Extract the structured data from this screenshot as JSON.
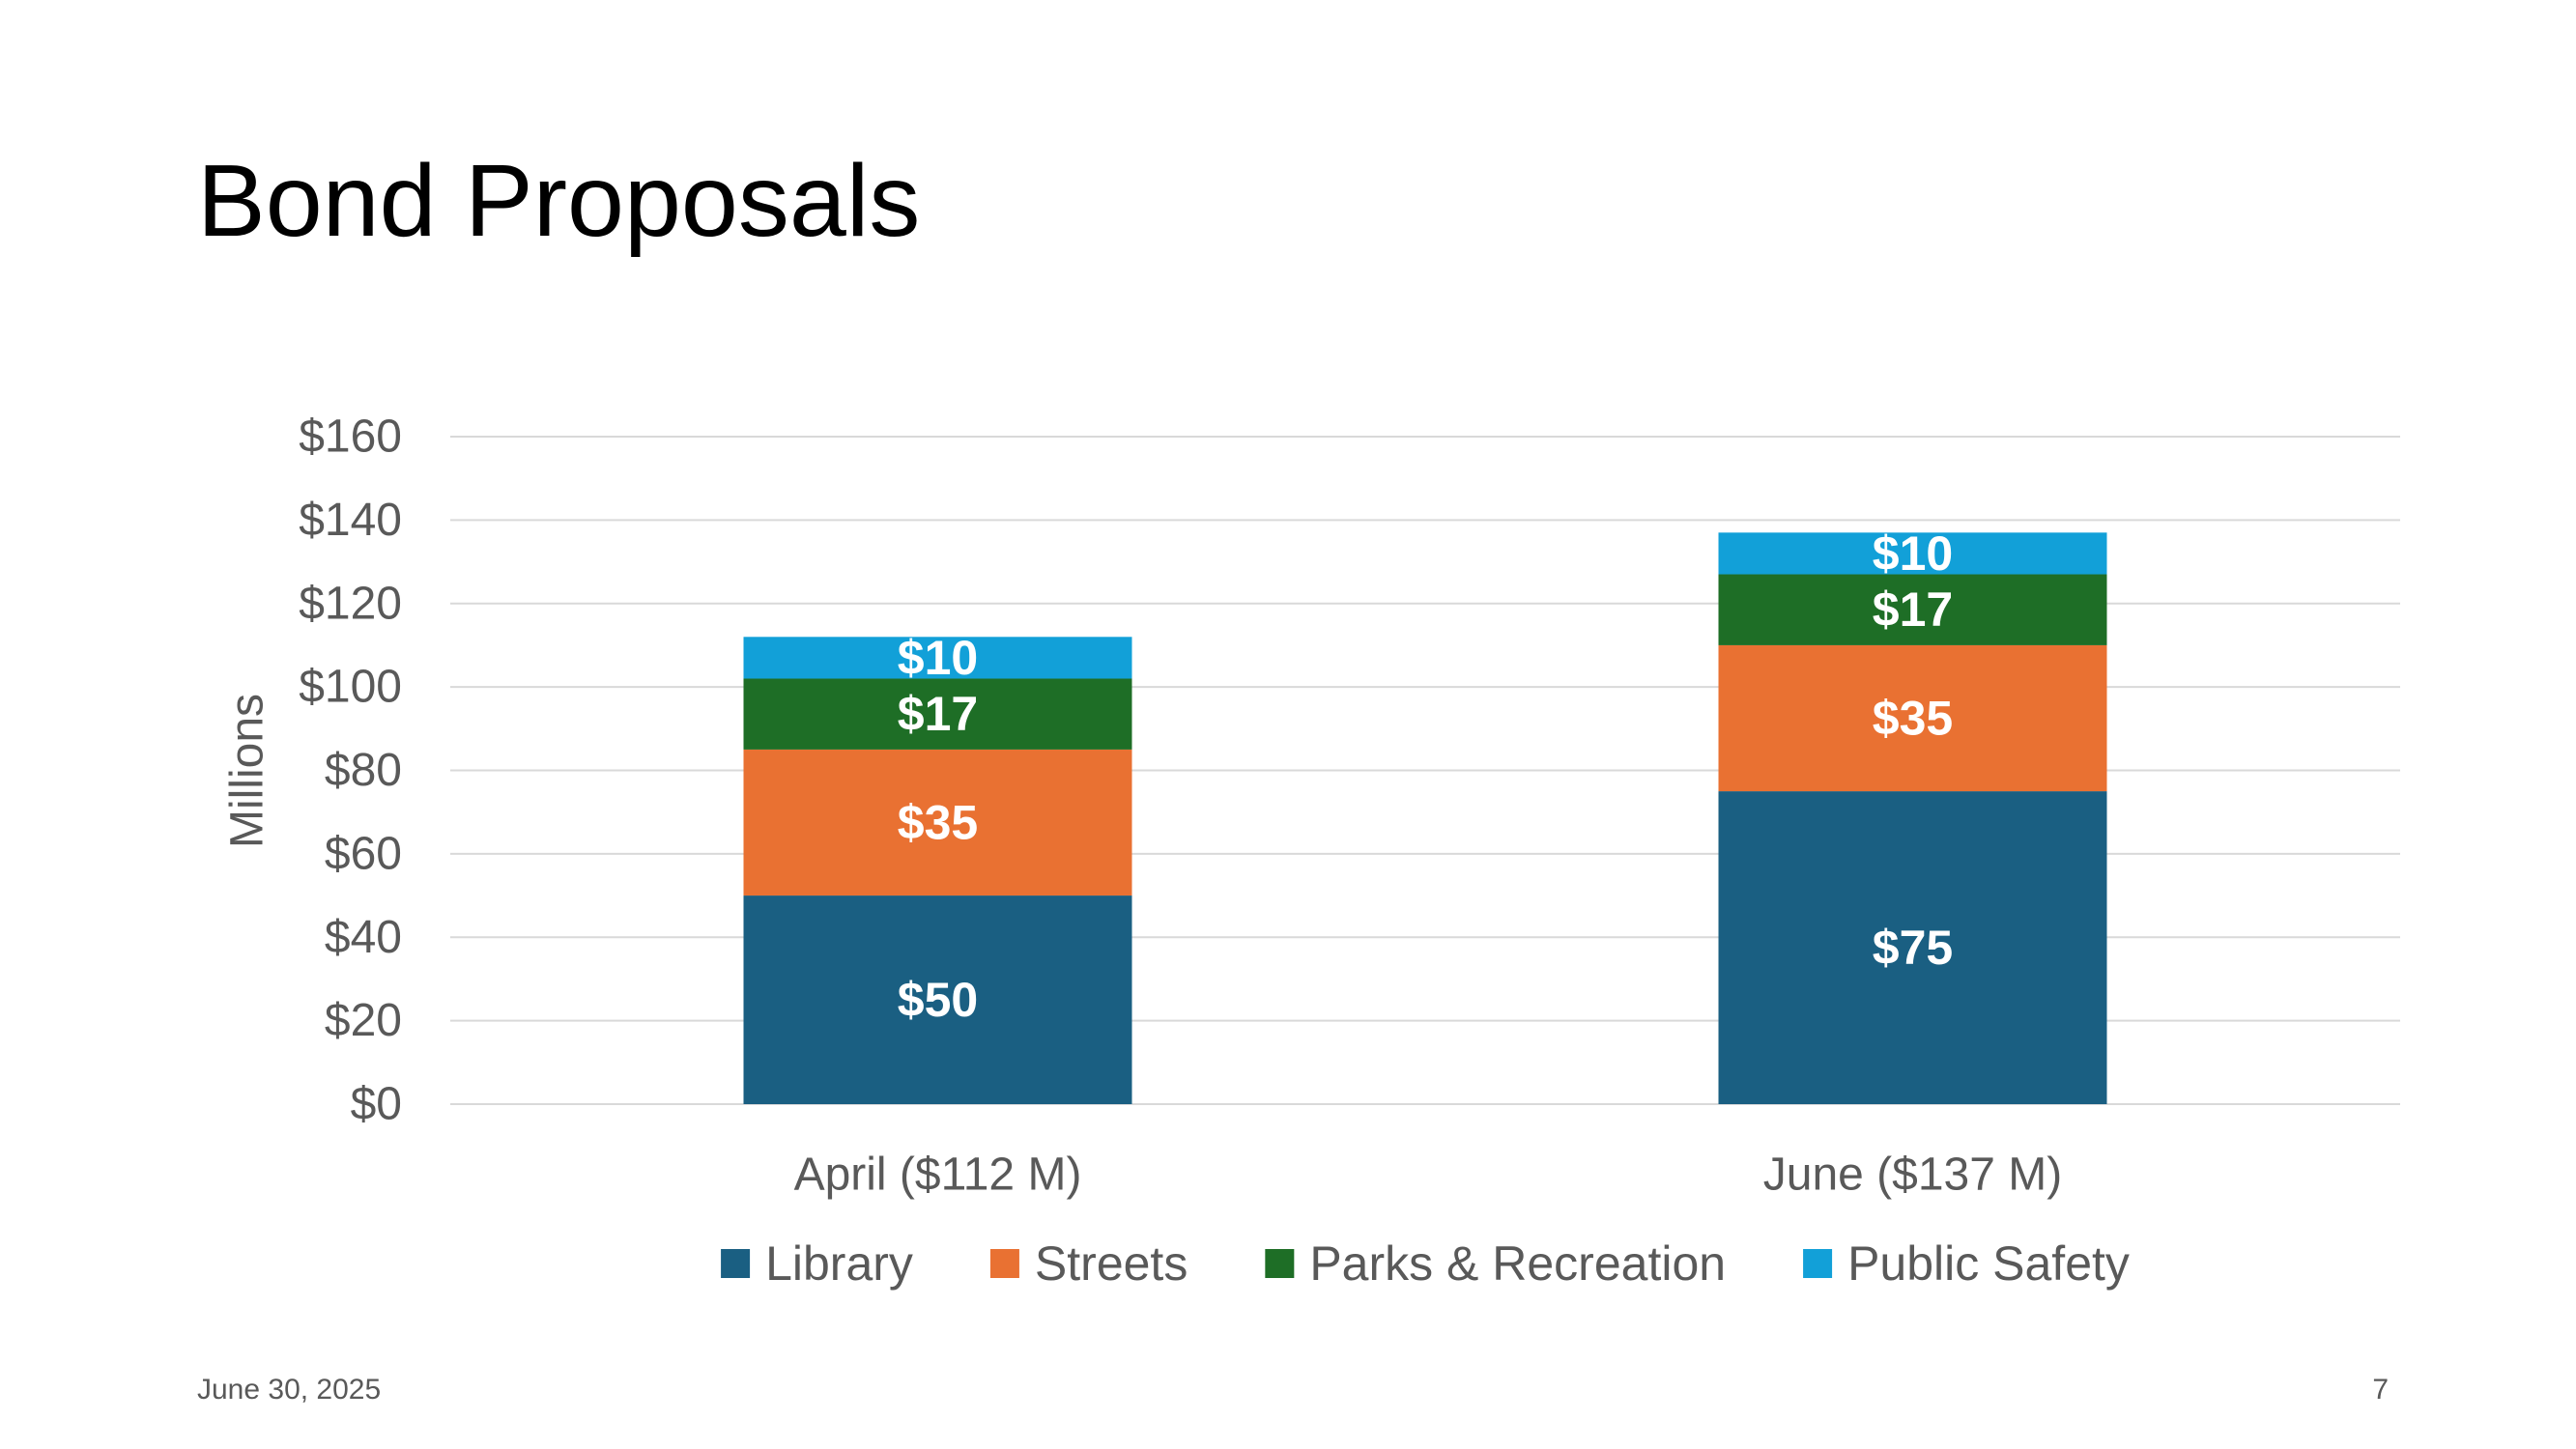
{
  "slide": {
    "title": "Bond Proposals",
    "date": "June 30, 2025",
    "page_number": "7"
  },
  "chart_data": {
    "type": "bar",
    "stacked": true,
    "categories": [
      "April ($112 M)",
      "June ($137 M)"
    ],
    "series": [
      {
        "name": "Library",
        "color": "#1a5f82",
        "values": [
          50,
          75
        ]
      },
      {
        "name": "Streets",
        "color": "#e97132",
        "values": [
          35,
          35
        ]
      },
      {
        "name": "Parks & Recreation",
        "color": "#1e6e26",
        "values": [
          17,
          17
        ]
      },
      {
        "name": "Public Safety",
        "color": "#12a0d8",
        "values": [
          10,
          10
        ]
      }
    ],
    "data_labels": [
      [
        "$50",
        "$75"
      ],
      [
        "$35",
        "$35"
      ],
      [
        "$17",
        "$17"
      ],
      [
        "$10",
        "$10"
      ]
    ],
    "ylabel": "Millions",
    "ylim": [
      0,
      160
    ],
    "yticks": [
      0,
      20,
      40,
      60,
      80,
      100,
      120,
      140,
      160
    ],
    "ytick_labels": [
      "$0",
      "$20",
      "$40",
      "$60",
      "$80",
      "$100",
      "$120",
      "$140",
      "$160"
    ],
    "grid": true,
    "legend_position": "bottom"
  }
}
